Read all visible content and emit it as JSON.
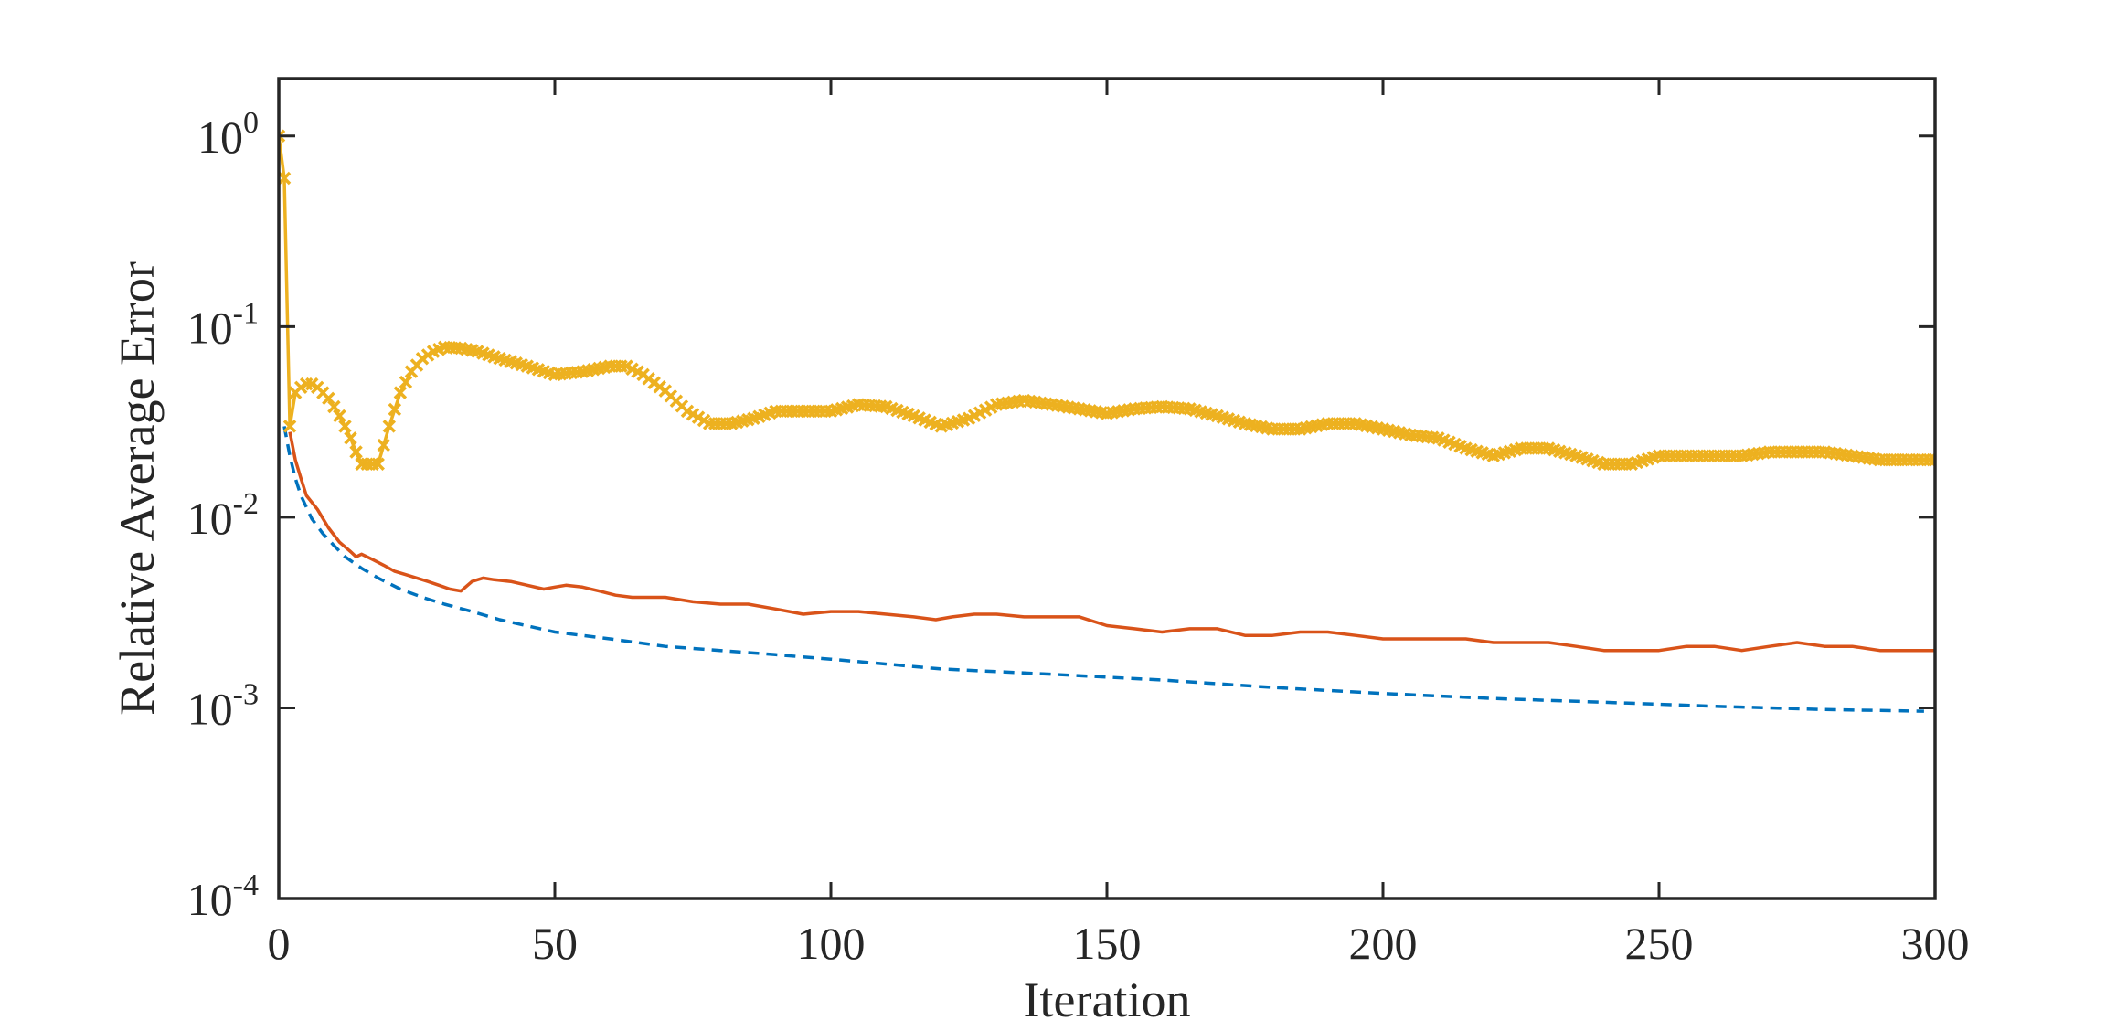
{
  "chart_data": {
    "type": "line",
    "title": "",
    "xlabel": "Iteration",
    "ylabel": "Relative Average Error",
    "xlim": [
      0,
      300
    ],
    "ylim": [
      0.0001,
      2
    ],
    "yscale": "log",
    "xticks": [
      0,
      50,
      100,
      150,
      200,
      250,
      300
    ],
    "yticks": [
      {
        "base": "10",
        "exp": "0",
        "value": 1
      },
      {
        "base": "10",
        "exp": "-1",
        "value": 0.1
      },
      {
        "base": "10",
        "exp": "-2",
        "value": 0.01
      },
      {
        "base": "10",
        "exp": "-3",
        "value": 0.001
      },
      {
        "base": "10",
        "exp": "-4",
        "value": 0.0001
      }
    ],
    "grid": false,
    "legend": "none",
    "series": [
      {
        "name": "dashed-blue",
        "color": "#0072BD",
        "style": "dashed",
        "marker": "none",
        "x": [
          1,
          2,
          3,
          4,
          6,
          8,
          10,
          12,
          15,
          18,
          22,
          26,
          30,
          35,
          40,
          50,
          60,
          70,
          80,
          90,
          100,
          120,
          140,
          160,
          180,
          200,
          220,
          240,
          260,
          280,
          298
        ],
        "y": [
          0.03,
          0.021,
          0.016,
          0.013,
          0.0098,
          0.0082,
          0.0071,
          0.0062,
          0.0054,
          0.0048,
          0.0042,
          0.0038,
          0.0035,
          0.0032,
          0.0029,
          0.0025,
          0.0023,
          0.0021,
          0.002,
          0.0019,
          0.0018,
          0.0016,
          0.0015,
          0.0014,
          0.00128,
          0.00119,
          0.00112,
          0.00107,
          0.00102,
          0.00098,
          0.00096
        ]
      },
      {
        "name": "solid-red",
        "color": "#D95319",
        "style": "solid",
        "marker": "none",
        "x": [
          2,
          3,
          4,
          5,
          7,
          9,
          11,
          13,
          14,
          15,
          17,
          19,
          21,
          23,
          25,
          27,
          29,
          31,
          33,
          35,
          37,
          39,
          42,
          45,
          48,
          50,
          52,
          55,
          58,
          61,
          64,
          67,
          70,
          75,
          80,
          85,
          90,
          95,
          100,
          105,
          110,
          115,
          119,
          122,
          126,
          130,
          135,
          140,
          145,
          150,
          155,
          160,
          165,
          170,
          175,
          180,
          185,
          190,
          195,
          200,
          205,
          210,
          215,
          220,
          225,
          230,
          235,
          240,
          245,
          250,
          255,
          260,
          265,
          270,
          275,
          280,
          285,
          290,
          295,
          300
        ],
        "y": [
          0.028,
          0.02,
          0.016,
          0.013,
          0.011,
          0.0088,
          0.0074,
          0.0066,
          0.0062,
          0.0064,
          0.006,
          0.0056,
          0.0052,
          0.005,
          0.0048,
          0.0046,
          0.0044,
          0.0042,
          0.0041,
          0.0046,
          0.0048,
          0.0047,
          0.0046,
          0.0044,
          0.0042,
          0.0043,
          0.0044,
          0.0043,
          0.0041,
          0.0039,
          0.0038,
          0.0038,
          0.0038,
          0.0036,
          0.0035,
          0.0035,
          0.0033,
          0.0031,
          0.0032,
          0.0032,
          0.0031,
          0.003,
          0.0029,
          0.003,
          0.0031,
          0.0031,
          0.003,
          0.003,
          0.003,
          0.0027,
          0.0026,
          0.0025,
          0.0026,
          0.0026,
          0.0024,
          0.0024,
          0.0025,
          0.0025,
          0.0024,
          0.0023,
          0.0023,
          0.0023,
          0.0023,
          0.0022,
          0.0022,
          0.0022,
          0.0021,
          0.002,
          0.002,
          0.002,
          0.0021,
          0.0021,
          0.002,
          0.0021,
          0.0022,
          0.0021,
          0.0021,
          0.002,
          0.002,
          0.002
        ]
      },
      {
        "name": "x-marker-yellow",
        "color": "#EDB120",
        "style": "solid",
        "marker": "x",
        "x": [
          0,
          1,
          2,
          3,
          4,
          5,
          6,
          7,
          8,
          9,
          10,
          11,
          12,
          13,
          14,
          15,
          16,
          17,
          18,
          20,
          22,
          24,
          26,
          28,
          30,
          33,
          36,
          40,
          45,
          50,
          55,
          60,
          63,
          66,
          70,
          74,
          78,
          82,
          86,
          90,
          95,
          100,
          105,
          110,
          115,
          120,
          125,
          130,
          135,
          140,
          145,
          150,
          155,
          160,
          165,
          170,
          175,
          180,
          185,
          190,
          195,
          200,
          205,
          210,
          215,
          220,
          225,
          230,
          235,
          240,
          245,
          250,
          255,
          260,
          265,
          270,
          275,
          280,
          285,
          290,
          295,
          300
        ],
        "y": [
          1.0,
          0.6,
          0.03,
          0.045,
          0.048,
          0.05,
          0.05,
          0.048,
          0.045,
          0.042,
          0.038,
          0.034,
          0.03,
          0.026,
          0.022,
          0.019,
          0.019,
          0.019,
          0.019,
          0.03,
          0.045,
          0.058,
          0.068,
          0.074,
          0.078,
          0.077,
          0.074,
          0.068,
          0.062,
          0.056,
          0.058,
          0.062,
          0.062,
          0.056,
          0.046,
          0.036,
          0.031,
          0.031,
          0.033,
          0.036,
          0.036,
          0.036,
          0.039,
          0.038,
          0.034,
          0.03,
          0.033,
          0.039,
          0.041,
          0.039,
          0.037,
          0.035,
          0.037,
          0.038,
          0.037,
          0.034,
          0.031,
          0.029,
          0.029,
          0.031,
          0.031,
          0.029,
          0.027,
          0.026,
          0.023,
          0.021,
          0.023,
          0.023,
          0.021,
          0.019,
          0.019,
          0.021,
          0.021,
          0.021,
          0.021,
          0.022,
          0.022,
          0.022,
          0.021,
          0.02,
          0.02,
          0.02
        ]
      }
    ]
  }
}
